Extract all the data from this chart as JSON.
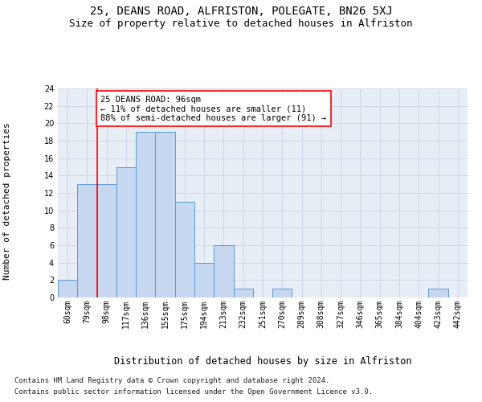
{
  "title": "25, DEANS ROAD, ALFRISTON, POLEGATE, BN26 5XJ",
  "subtitle": "Size of property relative to detached houses in Alfriston",
  "xlabel": "Distribution of detached houses by size in Alfriston",
  "ylabel": "Number of detached properties",
  "categories": [
    "60sqm",
    "79sqm",
    "98sqm",
    "117sqm",
    "136sqm",
    "155sqm",
    "175sqm",
    "194sqm",
    "213sqm",
    "232sqm",
    "251sqm",
    "270sqm",
    "289sqm",
    "308sqm",
    "327sqm",
    "346sqm",
    "365sqm",
    "384sqm",
    "404sqm",
    "423sqm",
    "442sqm"
  ],
  "values": [
    2,
    13,
    13,
    15,
    19,
    19,
    11,
    4,
    6,
    1,
    0,
    1,
    0,
    0,
    0,
    0,
    0,
    0,
    0,
    1,
    0
  ],
  "bar_color": "#c5d8f0",
  "bar_edge_color": "#5b9bd5",
  "red_line_x": 1.5,
  "annotation_text": "25 DEANS ROAD: 96sqm\n← 11% of detached houses are smaller (11)\n88% of semi-detached houses are larger (91) →",
  "annotation_box_color": "white",
  "annotation_box_edge_color": "red",
  "red_line_color": "red",
  "ylim": [
    0,
    24
  ],
  "yticks": [
    0,
    2,
    4,
    6,
    8,
    10,
    12,
    14,
    16,
    18,
    20,
    22,
    24
  ],
  "grid_color": "#c8d4e3",
  "bg_color": "#e8eef5",
  "footer_line1": "Contains HM Land Registry data © Crown copyright and database right 2024.",
  "footer_line2": "Contains public sector information licensed under the Open Government Licence v3.0.",
  "title_fontsize": 10,
  "subtitle_fontsize": 9,
  "xlabel_fontsize": 8.5,
  "ylabel_fontsize": 8,
  "tick_fontsize": 7,
  "annotation_fontsize": 7.5,
  "footer_fontsize": 6.5
}
